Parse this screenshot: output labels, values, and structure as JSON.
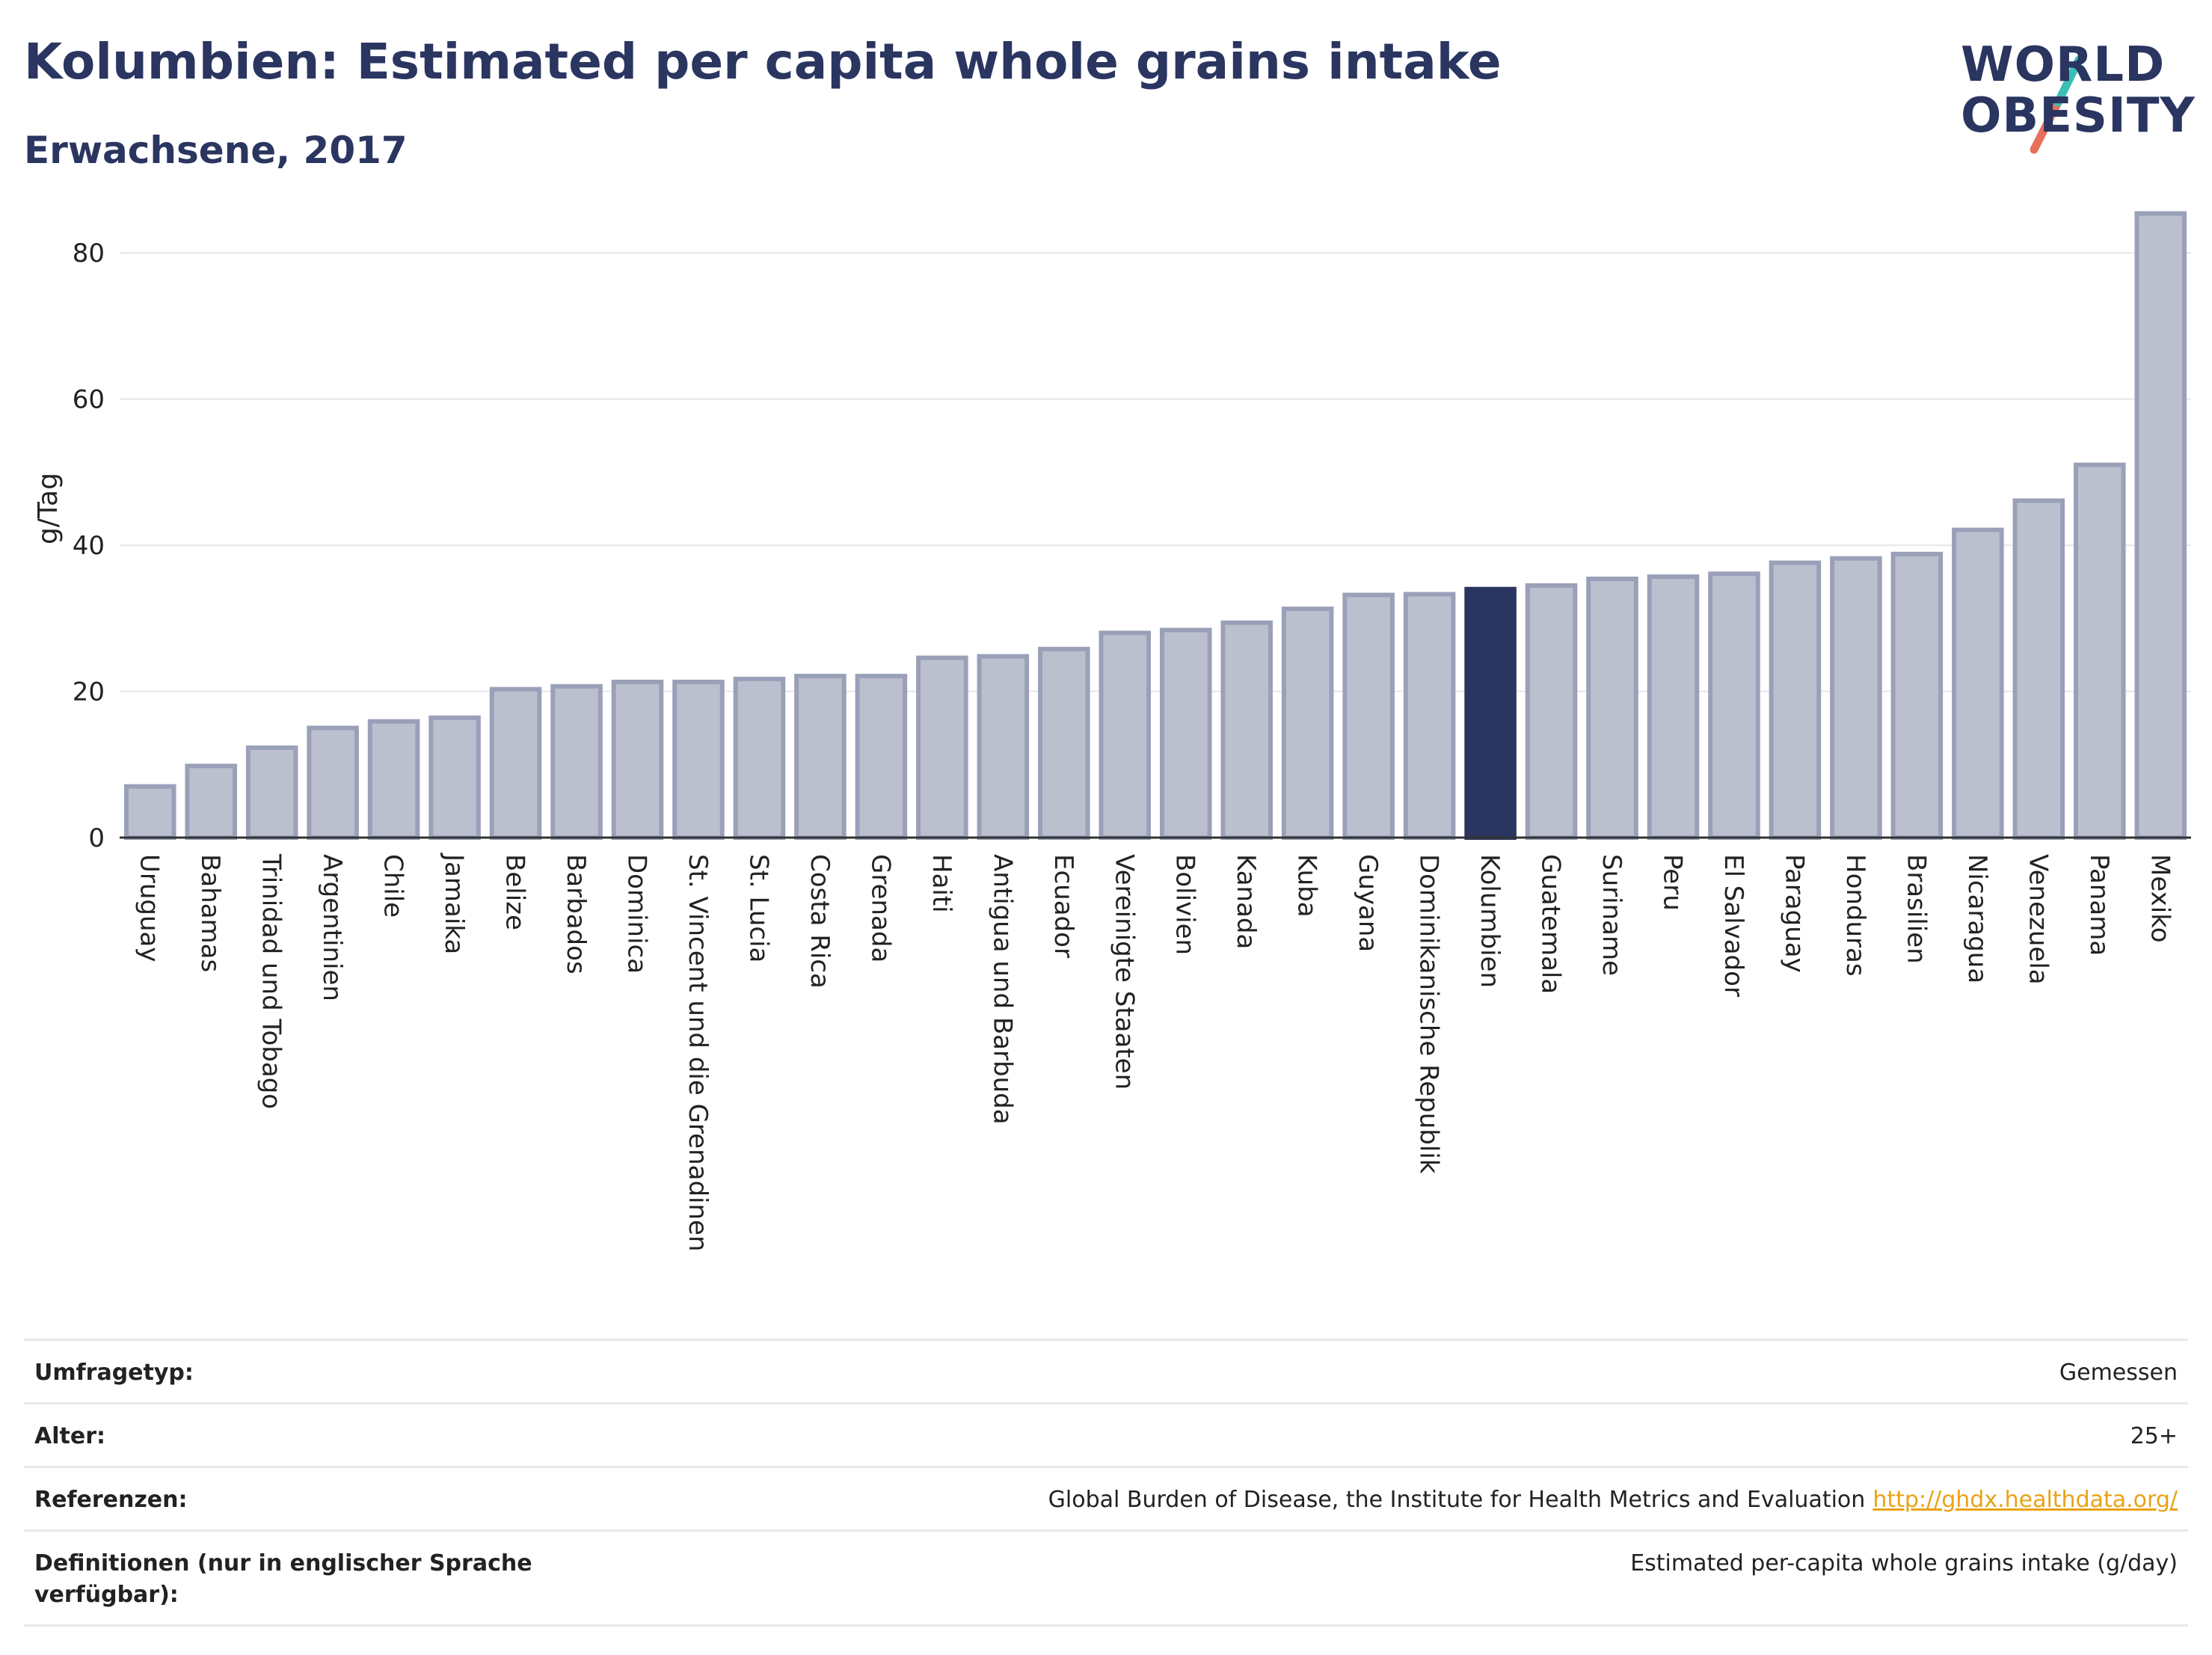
{
  "header": {
    "title": "Kolumbien: Estimated per capita whole grains intake",
    "subtitle": "Erwachsene, 2017"
  },
  "logo": {
    "line1": "WORLD",
    "line2": "OBESITY"
  },
  "colors": {
    "bar": "#bcc0ce",
    "bar_border": "#9aa0b8",
    "highlight": "#2a3560",
    "title": "#2a3560",
    "link": "#e8a316",
    "logo_teal": "#3bbfb5",
    "logo_coral": "#e8705a"
  },
  "chart_data": {
    "type": "bar",
    "ylabel": "g/Tag",
    "xlabel": "",
    "ylim": [
      0,
      88
    ],
    "yticks": [
      0,
      20,
      40,
      60,
      80
    ],
    "grid": true,
    "highlight": "Kolumbien",
    "categories": [
      "Uruguay",
      "Bahamas",
      "Trinidad und Tobago",
      "Argentinien",
      "Chile",
      "Jamaika",
      "Belize",
      "Barbados",
      "Dominica",
      "St. Vincent und die Grenadinen",
      "St. Lucia",
      "Costa Rica",
      "Grenada",
      "Haiti",
      "Antigua und Barbuda",
      "Ecuador",
      "Vereinigte Staaten",
      "Bolivien",
      "Kanada",
      "Kuba",
      "Guyana",
      "Dominikanische Republik",
      "Kolumbien",
      "Guatemala",
      "Suriname",
      "Peru",
      "El Salvador",
      "Paraguay",
      "Honduras",
      "Brasilien",
      "Nicaragua",
      "Venezuela",
      "Panama",
      "Mexiko"
    ],
    "values": [
      7.0,
      9.8,
      12.3,
      15.0,
      15.9,
      16.4,
      20.3,
      20.7,
      21.3,
      21.3,
      21.7,
      22.1,
      22.1,
      24.6,
      24.8,
      25.8,
      28.0,
      28.4,
      29.4,
      31.3,
      33.2,
      33.3,
      34.0,
      34.5,
      35.4,
      35.7,
      36.1,
      37.6,
      38.2,
      38.8,
      42.1,
      46.1,
      51.0,
      85.4
    ]
  },
  "meta": {
    "survey_label": "Umfragetyp:",
    "survey_value": "Gemessen",
    "age_label": "Alter:",
    "age_value": "25+",
    "refs_label": "Referenzen:",
    "refs_value": "Global Burden of Disease, the Institute for Health Metrics and Evaluation",
    "refs_link": "http://ghdx.healthdata.org/",
    "defs_label": "Definitionen (nur in englischer Sprache verfügbar):",
    "defs_value": "Estimated per-capita whole grains intake (g/day)"
  }
}
